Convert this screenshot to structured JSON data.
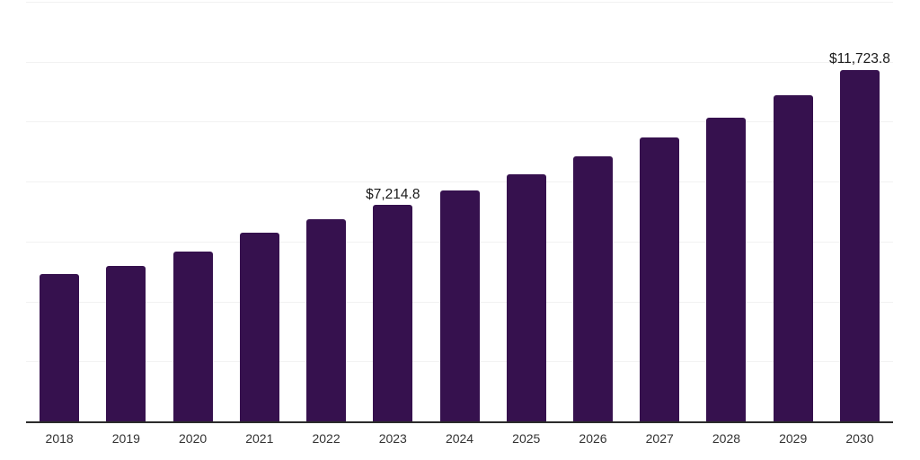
{
  "chart_data": {
    "type": "bar",
    "title": "",
    "xlabel": "",
    "ylabel": "",
    "categories": [
      "2018",
      "2019",
      "2020",
      "2021",
      "2022",
      "2023",
      "2024",
      "2025",
      "2026",
      "2027",
      "2028",
      "2029",
      "2030"
    ],
    "values": [
      4910,
      5200,
      5680,
      6300,
      6750,
      7214.8,
      7700,
      8240,
      8840,
      9460,
      10140,
      10890,
      11723.8
    ],
    "point_labels": [
      "",
      "",
      "",
      "",
      "",
      "$7,214.8",
      "",
      "",
      "",
      "",
      "",
      "",
      "$11,723.8"
    ],
    "ylim": [
      0,
      14000
    ],
    "gridline_step": 2000,
    "grid_on": true,
    "legend": "none",
    "colors": {
      "bar": "#36114E",
      "gridline": "#f2f2f2",
      "axis_line": "#2b2b2b",
      "tick_label": "#333333",
      "value_label": "#1a1a1a",
      "background": "#ffffff"
    }
  }
}
